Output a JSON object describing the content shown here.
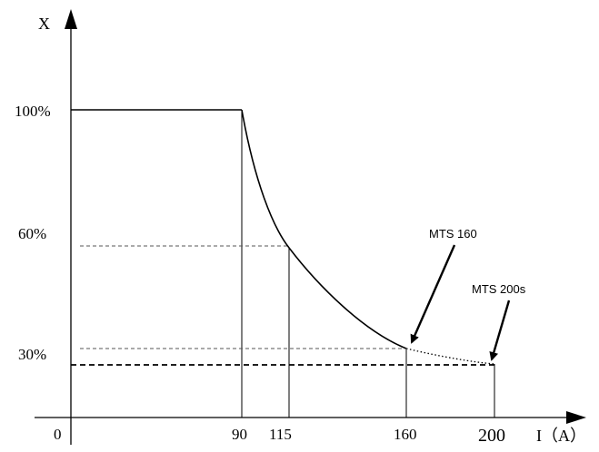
{
  "axes": {
    "y_label": "X",
    "x_label": "I（A）",
    "origin_label": "0"
  },
  "y_ticks": [
    "100%",
    "60%",
    "30%"
  ],
  "x_ticks": [
    "90",
    "115",
    "160",
    "200"
  ],
  "annotations": {
    "mts160": "MTS 160",
    "mts200s": "MTS 200s"
  },
  "colors": {
    "line": "#000000",
    "guide": "#555555",
    "background": "#ffffff"
  }
}
